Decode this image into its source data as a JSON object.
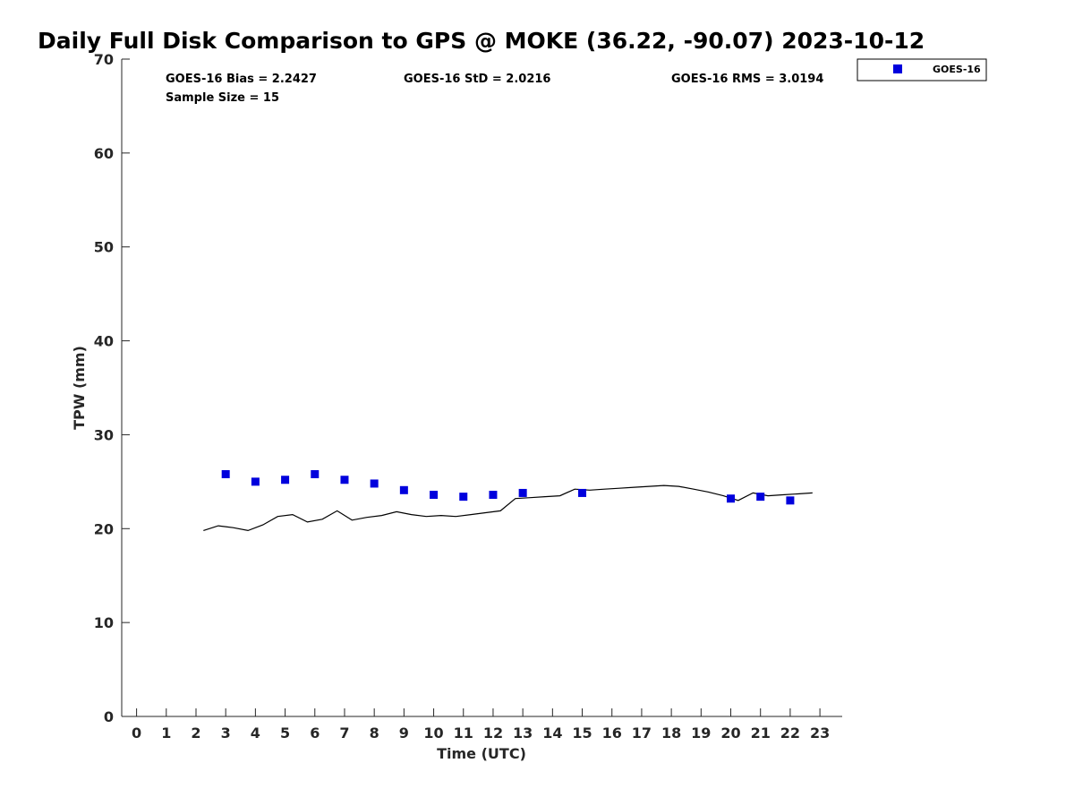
{
  "chart_data": {
    "type": "scatter",
    "title": "Daily Full Disk Comparison to GPS @ MOKE (36.22, -90.07) 2023-10-12",
    "xlabel": "Time (UTC)",
    "ylabel": "TPW (mm)",
    "xlim": [
      -0.5,
      23.75
    ],
    "ylim": [
      0,
      70
    ],
    "x_ticks": [
      0,
      1,
      2,
      3,
      4,
      5,
      6,
      7,
      8,
      9,
      10,
      11,
      12,
      13,
      14,
      15,
      16,
      17,
      18,
      19,
      20,
      21,
      22,
      23
    ],
    "y_ticks": [
      0,
      10,
      20,
      30,
      40,
      50,
      60,
      70
    ],
    "grid": false,
    "legend_position": "top-right",
    "stats": {
      "bias": "GOES-16 Bias = 2.2427",
      "std": "GOES-16 StD = 2.0216",
      "rms": "GOES-16 RMS = 3.0194",
      "sample": "Sample Size = 15"
    },
    "series": [
      {
        "name": "GOES-16",
        "kind": "scatter",
        "color": "#0000dd",
        "marker": "square",
        "x": [
          3.0,
          4.0,
          5.0,
          6.0,
          7.0,
          8.0,
          9.0,
          10.0,
          11.0,
          12.0,
          13.0,
          15.0,
          20.0,
          21.0,
          22.0
        ],
        "y": [
          25.8,
          25.0,
          25.2,
          25.8,
          25.2,
          24.8,
          24.1,
          23.6,
          23.4,
          23.6,
          23.8,
          23.8,
          23.2,
          23.4,
          23.0
        ]
      },
      {
        "kind": "line",
        "color": "#000000",
        "x": [
          2.25,
          2.75,
          3.25,
          3.75,
          4.25,
          4.75,
          5.25,
          5.75,
          6.25,
          6.75,
          7.25,
          7.75,
          8.25,
          8.75,
          9.25,
          9.75,
          10.25,
          10.75,
          11.25,
          11.75,
          12.25,
          12.75,
          13.25,
          13.75,
          14.25,
          14.75,
          15.25,
          15.75,
          16.25,
          16.75,
          17.25,
          17.75,
          18.25,
          18.75,
          19.25,
          19.75,
          20.25,
          20.75,
          21.25,
          21.75,
          22.25,
          22.75
        ],
        "y": [
          19.8,
          20.3,
          20.1,
          19.8,
          20.4,
          21.3,
          21.5,
          20.7,
          21.0,
          21.9,
          20.9,
          21.2,
          21.4,
          21.8,
          21.5,
          21.3,
          21.4,
          21.3,
          21.5,
          21.7,
          21.9,
          23.2,
          23.3,
          23.4,
          23.5,
          24.2,
          24.1,
          24.2,
          24.3,
          24.4,
          24.5,
          24.6,
          24.5,
          24.2,
          23.9,
          23.5,
          23.0,
          23.8,
          23.5,
          23.6,
          23.7,
          23.8
        ]
      }
    ]
  }
}
